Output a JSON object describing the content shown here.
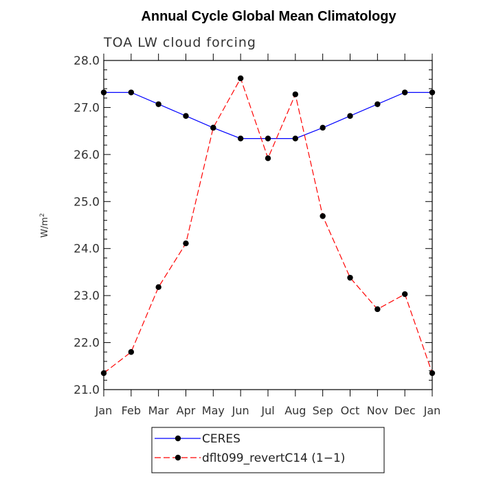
{
  "chart_data": {
    "type": "line",
    "title": "Annual Cycle Global Mean Climatology",
    "subtitle": "TOA LW cloud forcing",
    "ylabel": "W/m",
    "ylabel_sup": "2",
    "ylim": [
      21.0,
      28.0
    ],
    "yticks": [
      "21.0",
      "22.0",
      "23.0",
      "24.0",
      "25.0",
      "26.0",
      "27.0",
      "28.0"
    ],
    "categories": [
      "Jan",
      "Feb",
      "Mar",
      "Apr",
      "May",
      "Jun",
      "Jul",
      "Aug",
      "Sep",
      "Oct",
      "Nov",
      "Dec",
      "Jan"
    ],
    "series": [
      {
        "name": "CERES",
        "color": "#0000ff",
        "dash": "solid",
        "values": [
          27.32,
          27.32,
          27.07,
          26.82,
          26.57,
          26.34,
          26.34,
          26.34,
          26.57,
          26.82,
          27.07,
          27.32,
          27.32
        ]
      },
      {
        "name": "dflt099_revertC14 (1−1)",
        "color": "#ff0000",
        "dash": "dashed",
        "values": [
          21.35,
          21.8,
          23.18,
          24.11,
          26.57,
          27.62,
          25.92,
          27.28,
          24.69,
          23.38,
          22.71,
          23.03,
          21.35
        ]
      }
    ],
    "legend_position": "bottom-center",
    "grid": false
  }
}
